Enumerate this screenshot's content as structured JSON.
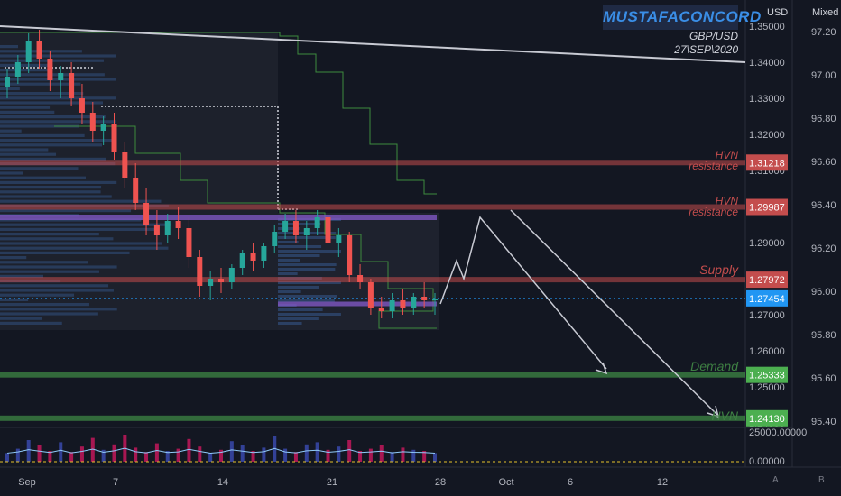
{
  "header": {
    "brand": "MUSTAFACONCORD",
    "symbol": "GBP/USD",
    "date": "27\\SEP\\2020",
    "currency_label": "USD",
    "scale_label": "Mixed"
  },
  "footer": {
    "auto_label": "A",
    "brand_label": "B"
  },
  "colors": {
    "background": "#131722",
    "up": "#26a69a",
    "down": "#ef5350",
    "resistance": "#c44d4d",
    "demand": "#4caf50",
    "hvn_purple": "#7e57c2",
    "current_price": "#2196f3"
  },
  "chart_data": {
    "type": "candlestick",
    "symbol": "GBP/USD",
    "y_axis_left": {
      "ticks": [
        "1.35000",
        "1.34000",
        "1.33000",
        "1.32000",
        "1.31000",
        "1.29000",
        "1.28000",
        "1.27000",
        "1.26000",
        "1.25000",
        "1.24000"
      ],
      "range": [
        1.2385,
        1.3525
      ]
    },
    "y_axis_right": {
      "ticks": [
        "97.20",
        "97.00",
        "96.80",
        "96.60",
        "96.40",
        "96.20",
        "96.00",
        "95.80",
        "95.60",
        "95.40"
      ]
    },
    "x_axis": {
      "ticks": [
        "Sep",
        "7",
        "14",
        "21",
        "28",
        "Oct",
        "6",
        "12"
      ]
    },
    "volume_axis": {
      "ticks": [
        "25000.00000",
        "0.00000"
      ]
    },
    "candles_ohlc": [
      [
        1.333,
        1.338,
        1.33,
        1.336
      ],
      [
        1.336,
        1.342,
        1.334,
        1.34
      ],
      [
        1.34,
        1.348,
        1.337,
        1.346
      ],
      [
        1.346,
        1.349,
        1.338,
        1.341
      ],
      [
        1.341,
        1.343,
        1.332,
        1.335
      ],
      [
        1.335,
        1.339,
        1.33,
        1.337
      ],
      [
        1.337,
        1.34,
        1.328,
        1.33
      ],
      [
        1.33,
        1.334,
        1.323,
        1.326
      ],
      [
        1.326,
        1.329,
        1.318,
        1.321
      ],
      [
        1.321,
        1.325,
        1.317,
        1.323
      ],
      [
        1.323,
        1.326,
        1.313,
        1.315
      ],
      [
        1.315,
        1.318,
        1.305,
        1.308
      ],
      [
        1.308,
        1.312,
        1.299,
        1.301
      ],
      [
        1.301,
        1.305,
        1.292,
        1.295
      ],
      [
        1.295,
        1.299,
        1.288,
        1.292
      ],
      [
        1.292,
        1.298,
        1.29,
        1.296
      ],
      [
        1.296,
        1.3,
        1.291,
        1.294
      ],
      [
        1.294,
        1.297,
        1.283,
        1.286
      ],
      [
        1.286,
        1.288,
        1.275,
        1.278
      ],
      [
        1.278,
        1.282,
        1.274,
        1.28
      ],
      [
        1.28,
        1.283,
        1.276,
        1.279
      ],
      [
        1.279,
        1.284,
        1.277,
        1.283
      ],
      [
        1.283,
        1.288,
        1.281,
        1.287
      ],
      [
        1.287,
        1.29,
        1.282,
        1.285
      ],
      [
        1.285,
        1.29,
        1.283,
        1.289
      ],
      [
        1.289,
        1.295,
        1.287,
        1.293
      ],
      [
        1.293,
        1.298,
        1.291,
        1.296
      ],
      [
        1.296,
        1.299,
        1.29,
        1.292
      ],
      [
        1.292,
        1.296,
        1.288,
        1.294
      ],
      [
        1.294,
        1.299,
        1.292,
        1.297
      ],
      [
        1.297,
        1.299,
        1.288,
        1.29
      ],
      [
        1.29,
        1.294,
        1.286,
        1.292
      ],
      [
        1.292,
        1.293,
        1.279,
        1.281
      ],
      [
        1.281,
        1.284,
        1.277,
        1.279
      ],
      [
        1.279,
        1.28,
        1.27,
        1.272
      ],
      [
        1.272,
        1.275,
        1.269,
        1.271
      ],
      [
        1.271,
        1.276,
        1.269,
        1.274
      ],
      [
        1.274,
        1.277,
        1.27,
        1.272
      ],
      [
        1.272,
        1.276,
        1.27,
        1.275
      ],
      [
        1.275,
        1.279,
        1.272,
        1.274
      ],
      [
        1.274,
        1.276,
        1.27,
        1.2745
      ]
    ],
    "levels": [
      {
        "label": "HVN resistance",
        "value": 1.31218,
        "price_label": "1.31218",
        "role": "resistance"
      },
      {
        "label": "HVN resistance",
        "value": 1.29987,
        "price_label": "1.29987",
        "role": "resistance"
      },
      {
        "label": "Supply",
        "value": 1.27972,
        "price_label": "1.27972",
        "role": "supply"
      },
      {
        "label": "",
        "value": 1.27454,
        "price_label": "1.27454",
        "role": "current"
      },
      {
        "label": "Demand",
        "value": 1.25333,
        "price_label": "1.25333",
        "role": "demand"
      },
      {
        "label": "HVN",
        "value": 1.2413,
        "price_label": "1.24130",
        "role": "demand"
      }
    ],
    "hvn_band_value": 1.297,
    "poc_value": 1.273,
    "trendline": {
      "from": {
        "date": "Aug 31",
        "price": 1.35
      },
      "to": {
        "date": "Oct 16",
        "price": 1.34
      }
    },
    "projections": [
      [
        1.273,
        1.285,
        1.28,
        1.297,
        1.255
      ],
      [
        1.299,
        1.242
      ]
    ],
    "volume": [
      8,
      12,
      20,
      15,
      10,
      18,
      9,
      14,
      22,
      11,
      16,
      25,
      13,
      9,
      17,
      10,
      12,
      21,
      14,
      8,
      11,
      19,
      15,
      10,
      13,
      24,
      12,
      9,
      16,
      18,
      11,
      14,
      20,
      10,
      12,
      15,
      9,
      13,
      11,
      10,
      8
    ]
  }
}
